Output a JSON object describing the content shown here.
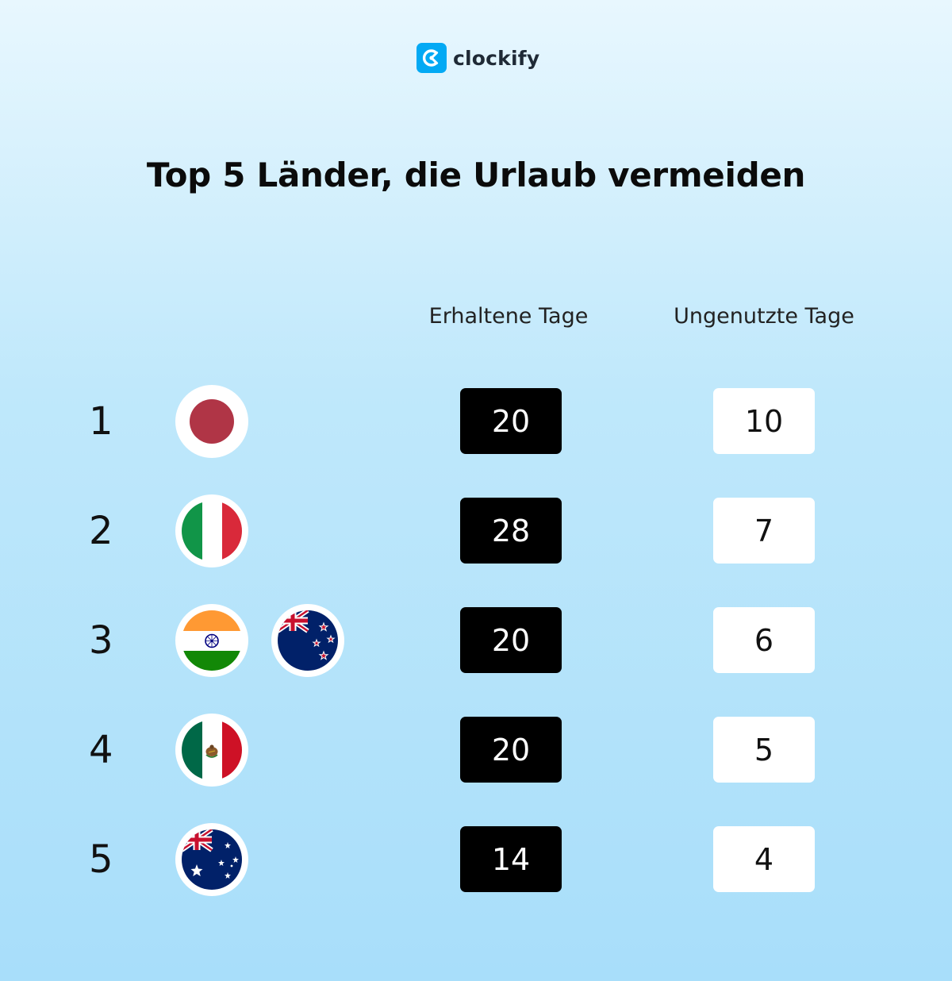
{
  "brand": {
    "logo_icon": "clockify-logo-icon",
    "name": "clockify",
    "color": "#03a9f4"
  },
  "title": "Top 5 Länder, die Urlaub vermeiden",
  "columns": {
    "received": "Erhaltene Tage",
    "unused": "Ungenutzte Tage"
  },
  "rows": [
    {
      "rank": "1",
      "flags": [
        "japan-flag-icon"
      ],
      "received": "20",
      "unused": "10"
    },
    {
      "rank": "2",
      "flags": [
        "italy-flag-icon"
      ],
      "received": "28",
      "unused": "7"
    },
    {
      "rank": "3",
      "flags": [
        "india-flag-icon",
        "new-zealand-flag-icon"
      ],
      "received": "20",
      "unused": "6"
    },
    {
      "rank": "4",
      "flags": [
        "mexico-flag-icon"
      ],
      "received": "20",
      "unused": "5"
    },
    {
      "rank": "5",
      "flags": [
        "australia-flag-icon"
      ],
      "received": "14",
      "unused": "4"
    }
  ],
  "colors": {
    "received_box": "#000000",
    "unused_box": "#ffffff"
  }
}
